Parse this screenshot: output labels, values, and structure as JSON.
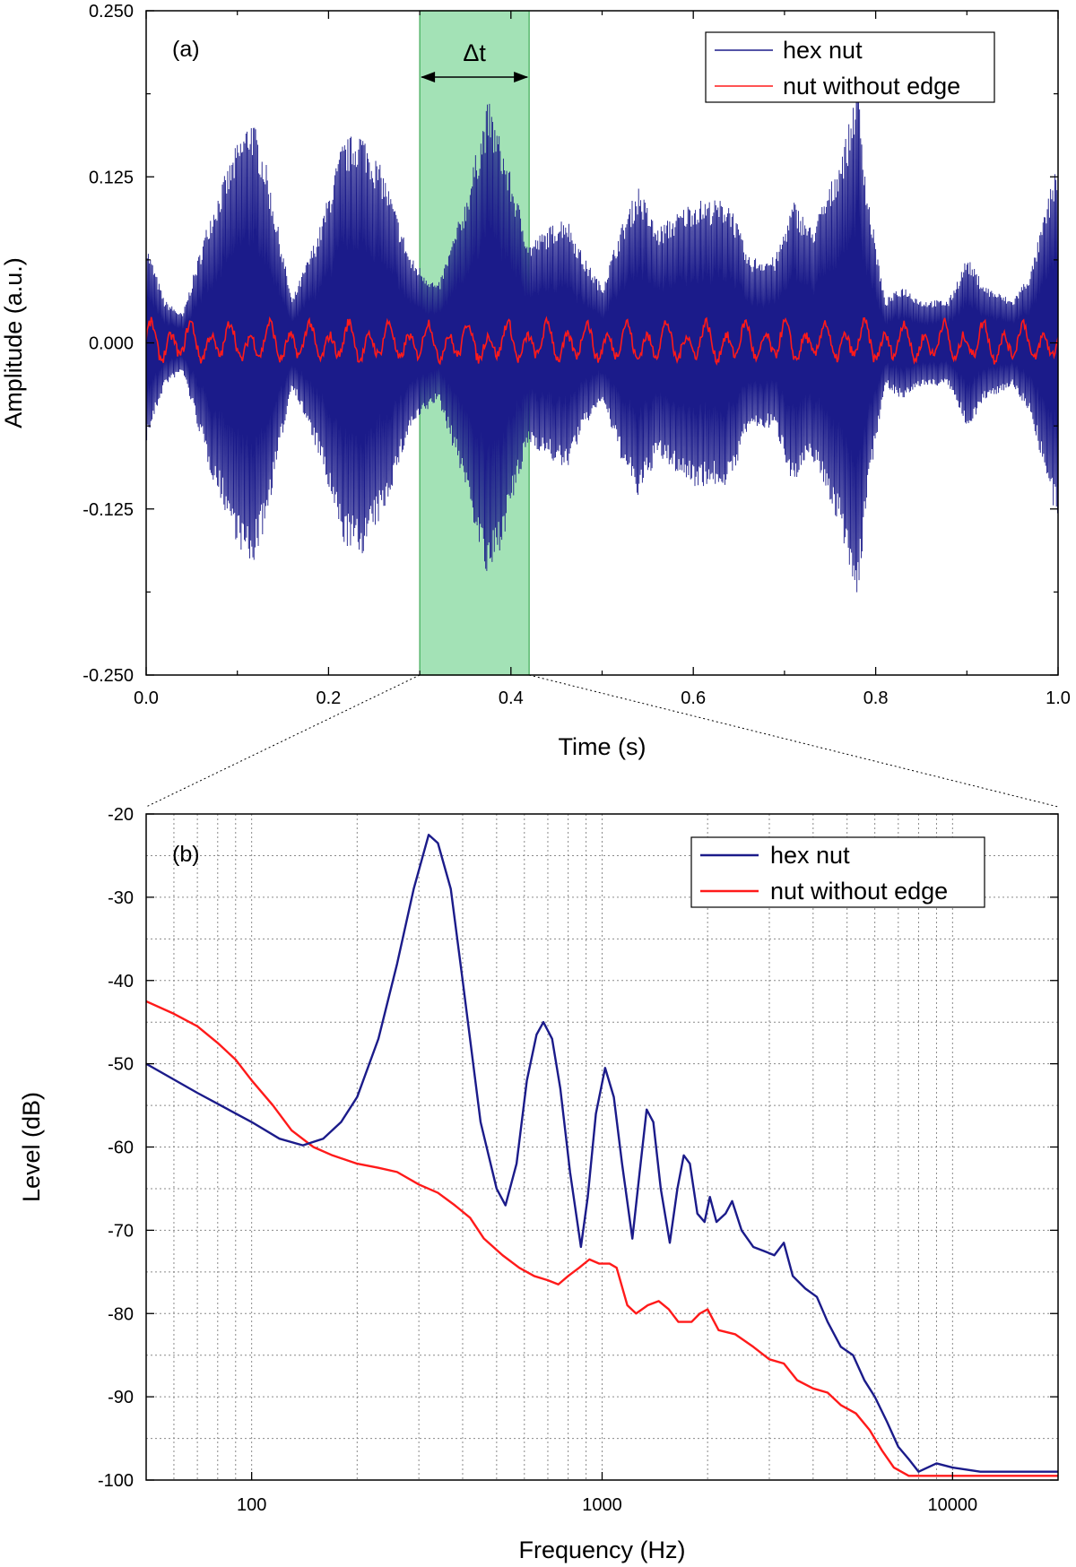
{
  "colors": {
    "hex_nut": "#1b1b8a",
    "nut_without_edge": "#ff1a1a",
    "highlight": "#9ee0b2",
    "highlight_edge": "#3caa55"
  },
  "chart_data": [
    {
      "panel": "(a)",
      "type": "line",
      "xlabel": "Time (s)",
      "ylabel": "Amplitude (a.u.)",
      "xlim": [
        0.0,
        1.0
      ],
      "ylim": [
        -0.25,
        0.25
      ],
      "x_ticks": [
        "0.0",
        "0.2",
        "0.4",
        "0.6",
        "0.8",
        "1.0"
      ],
      "y_ticks": [
        "-0.250",
        "-0.125",
        "0.000",
        "0.125",
        "0.250"
      ],
      "highlight": {
        "label": "Δt",
        "x_start": 0.3,
        "x_end": 0.42
      },
      "legend": [
        "hex nut",
        "nut without edge"
      ],
      "series": [
        {
          "name": "hex nut",
          "description": "oscillating signal, envelope peaks (time, peak amplitude)",
          "envelope": [
            [
              0.0,
              0.07
            ],
            [
              0.02,
              0.03
            ],
            [
              0.04,
              0.02
            ],
            [
              0.07,
              0.09
            ],
            [
              0.1,
              0.14
            ],
            [
              0.115,
              0.16
            ],
            [
              0.13,
              0.13
            ],
            [
              0.16,
              0.03
            ],
            [
              0.19,
              0.08
            ],
            [
              0.215,
              0.14
            ],
            [
              0.235,
              0.15
            ],
            [
              0.26,
              0.12
            ],
            [
              0.29,
              0.06
            ],
            [
              0.32,
              0.04
            ],
            [
              0.35,
              0.1
            ],
            [
              0.375,
              0.17
            ],
            [
              0.39,
              0.14
            ],
            [
              0.42,
              0.07
            ],
            [
              0.44,
              0.08
            ],
            [
              0.46,
              0.09
            ],
            [
              0.48,
              0.06
            ],
            [
              0.5,
              0.04
            ],
            [
              0.52,
              0.08
            ],
            [
              0.54,
              0.11
            ],
            [
              0.56,
              0.08
            ],
            [
              0.6,
              0.1
            ],
            [
              0.64,
              0.1
            ],
            [
              0.66,
              0.06
            ],
            [
              0.69,
              0.06
            ],
            [
              0.71,
              0.1
            ],
            [
              0.73,
              0.08
            ],
            [
              0.75,
              0.11
            ],
            [
              0.77,
              0.15
            ],
            [
              0.78,
              0.19
            ],
            [
              0.79,
              0.11
            ],
            [
              0.81,
              0.03
            ],
            [
              0.83,
              0.04
            ],
            [
              0.85,
              0.03
            ],
            [
              0.88,
              0.03
            ],
            [
              0.9,
              0.06
            ],
            [
              0.92,
              0.04
            ],
            [
              0.95,
              0.03
            ],
            [
              0.97,
              0.05
            ],
            [
              1.0,
              0.13
            ]
          ]
        },
        {
          "name": "nut without edge",
          "description": "small oscillation, amplitude about 0.015",
          "amplitude": 0.015
        }
      ]
    },
    {
      "panel": "(b)",
      "type": "line",
      "xscale": "log",
      "xlabel": "Frequency (Hz)",
      "ylabel": "Level (dB)",
      "xlim": [
        50,
        20000
      ],
      "ylim": [
        -100,
        -20
      ],
      "x_ticks": [
        "100",
        "1000",
        "10000"
      ],
      "y_ticks": [
        "-20",
        "-30",
        "-40",
        "-50",
        "-60",
        "-70",
        "-80",
        "-90",
        "-100"
      ],
      "legend": [
        "hex nut",
        "nut without edge"
      ],
      "series": [
        {
          "name": "hex nut",
          "points": [
            [
              50,
              -50
            ],
            [
              70,
              -53.5
            ],
            [
              100,
              -57
            ],
            [
              120,
              -59
            ],
            [
              140,
              -59.8
            ],
            [
              160,
              -59
            ],
            [
              180,
              -57
            ],
            [
              200,
              -54
            ],
            [
              230,
              -47
            ],
            [
              260,
              -38
            ],
            [
              290,
              -29
            ],
            [
              320,
              -22.5
            ],
            [
              340,
              -23.5
            ],
            [
              370,
              -29
            ],
            [
              400,
              -40
            ],
            [
              450,
              -57
            ],
            [
              500,
              -65
            ],
            [
              530,
              -67
            ],
            [
              570,
              -62
            ],
            [
              610,
              -52
            ],
            [
              650,
              -46.5
            ],
            [
              680,
              -45
            ],
            [
              720,
              -47
            ],
            [
              760,
              -53
            ],
            [
              810,
              -63
            ],
            [
              870,
              -72
            ],
            [
              910,
              -66
            ],
            [
              960,
              -56
            ],
            [
              1020,
              -50.5
            ],
            [
              1080,
              -54
            ],
            [
              1140,
              -62
            ],
            [
              1220,
              -71
            ],
            [
              1280,
              -63
            ],
            [
              1340,
              -55.5
            ],
            [
              1400,
              -57
            ],
            [
              1470,
              -65
            ],
            [
              1560,
              -71.5
            ],
            [
              1640,
              -65
            ],
            [
              1710,
              -61
            ],
            [
              1780,
              -62
            ],
            [
              1870,
              -68
            ],
            [
              1960,
              -69
            ],
            [
              2030,
              -66
            ],
            [
              2120,
              -69
            ],
            [
              2250,
              -68
            ],
            [
              2350,
              -66.5
            ],
            [
              2500,
              -70
            ],
            [
              2700,
              -72
            ],
            [
              2900,
              -72.5
            ],
            [
              3100,
              -73
            ],
            [
              3300,
              -71.5
            ],
            [
              3500,
              -75.5
            ],
            [
              3800,
              -77
            ],
            [
              4100,
              -78
            ],
            [
              4400,
              -81
            ],
            [
              4800,
              -84
            ],
            [
              5200,
              -85
            ],
            [
              5600,
              -88
            ],
            [
              6000,
              -90
            ],
            [
              6500,
              -93
            ],
            [
              7000,
              -96
            ],
            [
              7500,
              -97.5
            ],
            [
              8000,
              -99
            ],
            [
              9000,
              -98
            ],
            [
              10000,
              -98.5
            ],
            [
              12000,
              -99
            ],
            [
              15000,
              -99
            ],
            [
              20000,
              -99
            ]
          ]
        },
        {
          "name": "nut without edge",
          "points": [
            [
              50,
              -42.5
            ],
            [
              60,
              -44
            ],
            [
              70,
              -45.5
            ],
            [
              80,
              -47.5
            ],
            [
              90,
              -49.5
            ],
            [
              100,
              -52
            ],
            [
              115,
              -55
            ],
            [
              130,
              -58
            ],
            [
              150,
              -60
            ],
            [
              170,
              -61
            ],
            [
              200,
              -62
            ],
            [
              230,
              -62.5
            ],
            [
              260,
              -63
            ],
            [
              300,
              -64.5
            ],
            [
              340,
              -65.5
            ],
            [
              380,
              -67
            ],
            [
              420,
              -68.5
            ],
            [
              460,
              -71
            ],
            [
              520,
              -73
            ],
            [
              580,
              -74.5
            ],
            [
              640,
              -75.5
            ],
            [
              700,
              -76
            ],
            [
              750,
              -76.5
            ],
            [
              800,
              -75.5
            ],
            [
              860,
              -74.5
            ],
            [
              920,
              -73.5
            ],
            [
              980,
              -74
            ],
            [
              1050,
              -74
            ],
            [
              1100,
              -74.5
            ],
            [
              1180,
              -79
            ],
            [
              1250,
              -80
            ],
            [
              1350,
              -79
            ],
            [
              1450,
              -78.5
            ],
            [
              1550,
              -79.5
            ],
            [
              1650,
              -81
            ],
            [
              1800,
              -81
            ],
            [
              1900,
              -80
            ],
            [
              2000,
              -79.5
            ],
            [
              2150,
              -82
            ],
            [
              2400,
              -82.5
            ],
            [
              2700,
              -84
            ],
            [
              3000,
              -85.5
            ],
            [
              3300,
              -86
            ],
            [
              3600,
              -88
            ],
            [
              4000,
              -89
            ],
            [
              4400,
              -89.5
            ],
            [
              4800,
              -91
            ],
            [
              5300,
              -92
            ],
            [
              5800,
              -94
            ],
            [
              6300,
              -96.5
            ],
            [
              6800,
              -98.5
            ],
            [
              7500,
              -99.5
            ],
            [
              9000,
              -99.5
            ],
            [
              12000,
              -99.5
            ],
            [
              20000,
              -99.5
            ]
          ]
        }
      ]
    }
  ]
}
